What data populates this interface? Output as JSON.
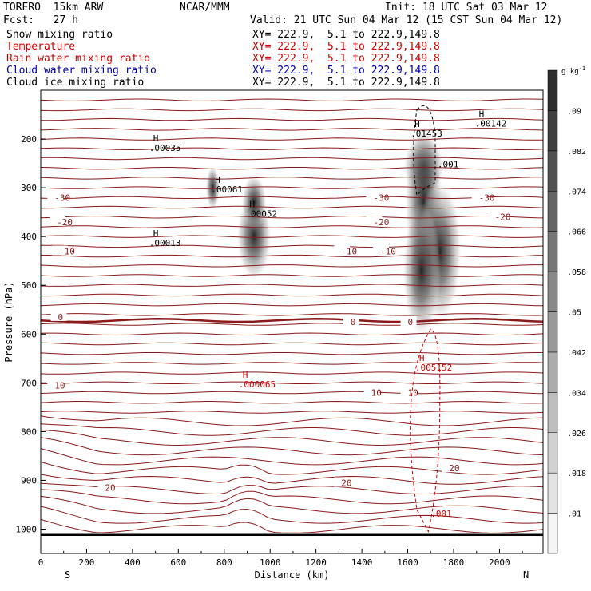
{
  "header": {
    "model": "TORERO  15km ARW",
    "org": "NCAR/MMM",
    "init": "Init: 18 UTC Sat 03 Mar 12",
    "fcst": "Fcst:   27 h",
    "valid": "Valid: 21 UTC Sun 04 Mar 12 (15 CST Sun 04 Mar 12)"
  },
  "fields": [
    {
      "name": "Snow mixing ratio",
      "range": "XY= 222.9,  5.1 to 222.9,149.8",
      "color": "#000000"
    },
    {
      "name": "Temperature",
      "range": "XY= 222.9,  5.1 to 222.9,149.8",
      "color": "#cc0000"
    },
    {
      "name": "Rain water mixing ratio",
      "range": "XY= 222.9,  5.1 to 222.9,149.8",
      "color": "#cc0000"
    },
    {
      "name": "Cloud water mixing ratio",
      "range": "XY= 222.9,  5.1 to 222.9,149.8",
      "color": "#0000aa"
    },
    {
      "name": "Cloud ice mixing ratio",
      "range": "XY= 222.9,  5.1 to 222.9,149.8",
      "color": "#000000"
    }
  ],
  "chart_data": {
    "type": "cross-section",
    "xlabel": "Distance (km)",
    "ylabel": "Pressure (hPa)",
    "xlim": [
      0,
      2190
    ],
    "ylim": [
      1050,
      100
    ],
    "x_ticks": [
      0,
      200,
      400,
      600,
      800,
      1000,
      1200,
      1400,
      1600,
      1800,
      2000
    ],
    "y_ticks": [
      200,
      300,
      400,
      500,
      600,
      700,
      800,
      900,
      1000
    ],
    "x_end_labels": {
      "left": "S",
      "right": "N"
    },
    "colorbar": {
      "unit": "g kg",
      "unit_exp": "-1",
      "ticks": [
        ".01",
        ".018",
        ".026",
        ".034",
        ".042",
        ".05",
        ".058",
        ".066",
        ".074",
        ".082",
        ".09"
      ]
    },
    "temperature_labels": [
      {
        "text": "-30",
        "x": 60,
        "p": 320
      },
      {
        "text": "-30",
        "x": 1450,
        "p": 320
      },
      {
        "text": "-30",
        "x": 1910,
        "p": 320
      },
      {
        "text": "-20",
        "x": 70,
        "p": 370
      },
      {
        "text": "-20",
        "x": 1450,
        "p": 370
      },
      {
        "text": "-20",
        "x": 1980,
        "p": 360
      },
      {
        "text": "-10",
        "x": 80,
        "p": 430
      },
      {
        "text": "-10",
        "x": 1310,
        "p": 430
      },
      {
        "text": "-10",
        "x": 1480,
        "p": 430
      },
      {
        "text": "0",
        "x": 75,
        "p": 565
      },
      {
        "text": "0",
        "x": 1350,
        "p": 575
      },
      {
        "text": "0",
        "x": 1600,
        "p": 575
      },
      {
        "text": "10",
        "x": 60,
        "p": 705
      },
      {
        "text": "10",
        "x": 1440,
        "p": 720
      },
      {
        "text": "10",
        "x": 1600,
        "p": 720
      },
      {
        "text": "20",
        "x": 280,
        "p": 915
      },
      {
        "text": "20",
        "x": 1310,
        "p": 905
      },
      {
        "text": "20",
        "x": 1780,
        "p": 875
      }
    ],
    "maxima": [
      {
        "label": "H",
        "value": ".00035",
        "x": 490,
        "p": 205,
        "color": "#000000"
      },
      {
        "label": "H",
        "value": ".00061",
        "x": 760,
        "p": 290,
        "color": "#000000"
      },
      {
        "label": "H",
        "value": ".00052",
        "x": 910,
        "p": 340,
        "color": "#000000"
      },
      {
        "label": "H",
        "value": ".00013",
        "x": 490,
        "p": 400,
        "color": "#000000"
      },
      {
        "label": "H",
        "value": ".01453",
        "x": 1630,
        "p": 175,
        "color": "#000000"
      },
      {
        "label": "H",
        "value": ".00142",
        "x": 1910,
        "p": 155,
        "color": "#000000"
      },
      {
        "label": "H",
        "value": ".005152",
        "x": 1650,
        "p": 655,
        "color": "#cc0000"
      },
      {
        "label": "H",
        "value": ".000065",
        "x": 880,
        "p": 690,
        "color": "#cc0000"
      }
    ],
    "contour_value_labels": [
      {
        "text": ".001",
        "x": 1730,
        "p": 258,
        "color": "#000000"
      },
      {
        "text": ".001",
        "x": 1700,
        "p": 975,
        "color": "#cc0000"
      }
    ]
  }
}
